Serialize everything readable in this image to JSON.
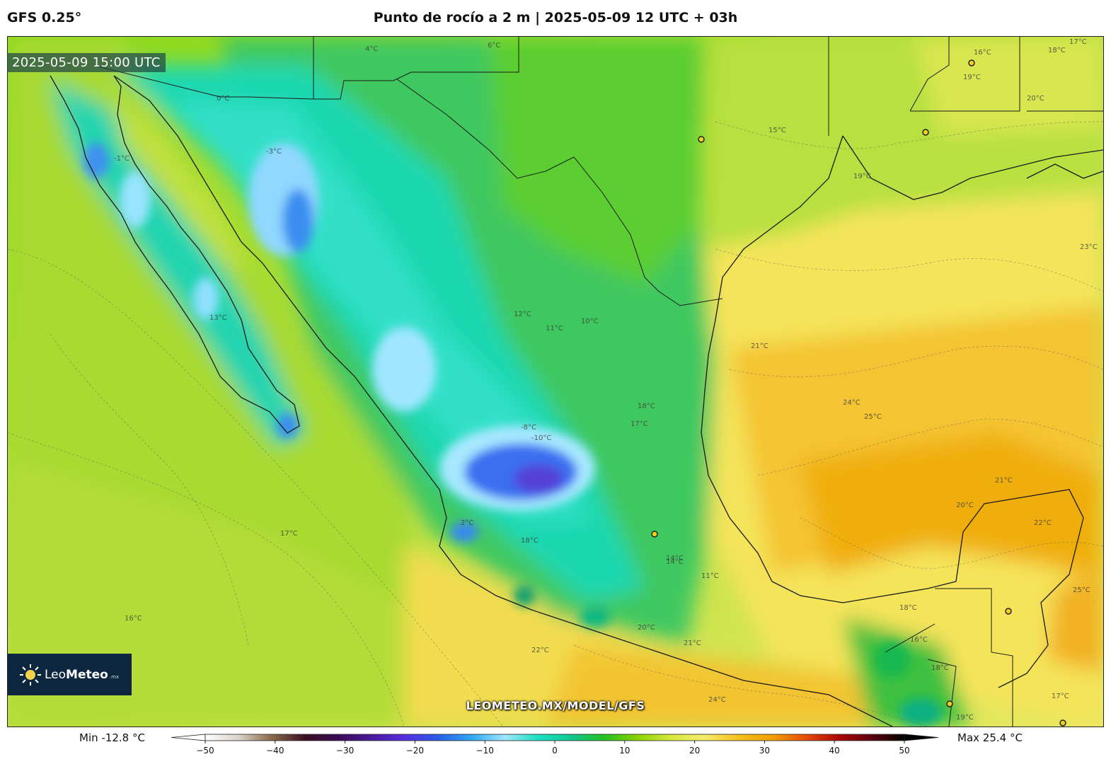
{
  "header": {
    "model": "GFS 0.25°",
    "title": "Punto de rocío a 2 m | 2025-05-09 12 UTC + 03h"
  },
  "map": {
    "valid_time": "2025-05-09 15:00 UTC",
    "watermark": "LEOMETEO.MX/MODEL/GFS",
    "logo": {
      "name_light": "Leo",
      "name_bold": "Meteo",
      "tld": ".mx"
    },
    "contour_labels": [
      "16°C",
      "18°C",
      "19°C",
      "17°C",
      "-3°C",
      "4°C",
      "6°C",
      "15°C",
      "20°C",
      "19°C",
      "23°C",
      "12°C",
      "11°C",
      "10°C",
      "21°C",
      "24°C",
      "25°C",
      "18°C",
      "17°C",
      "-8°C",
      "-10°C",
      "21°C",
      "20°C",
      "22°C",
      "25°C",
      "17°C",
      "16°C",
      "18°C",
      "14°C",
      "11°C",
      "20°C",
      "21°C",
      "22°C",
      "24°C",
      "18°C",
      "16°C",
      "19°C",
      "17°C",
      "18°C",
      "14°C",
      "13°C",
      "0°C",
      "-1°C",
      "2°C"
    ]
  },
  "colorbar": {
    "min_label": "Min -12.8 °C",
    "max_label": "Max 25.4 °C",
    "ticks": [
      "−50",
      "−40",
      "−30",
      "−20",
      "−10",
      "0",
      "10",
      "20",
      "30",
      "40",
      "50"
    ],
    "stops": [
      "#ffffff",
      "#d9d2c8",
      "#8a6a4a",
      "#3a1020",
      "#3c0a55",
      "#4b1aa0",
      "#5530e0",
      "#2a5de8",
      "#2ea8f0",
      "#a0e6ff",
      "#1ae0c0",
      "#10c890",
      "#22c020",
      "#8cd400",
      "#d8e840",
      "#f6ec6a",
      "#f6c020",
      "#f0a000",
      "#e85000",
      "#b00808",
      "#600010",
      "#000000"
    ],
    "accent_land_cold": "#3a55e0",
    "accent_warm_gulf": "#f2b020"
  }
}
